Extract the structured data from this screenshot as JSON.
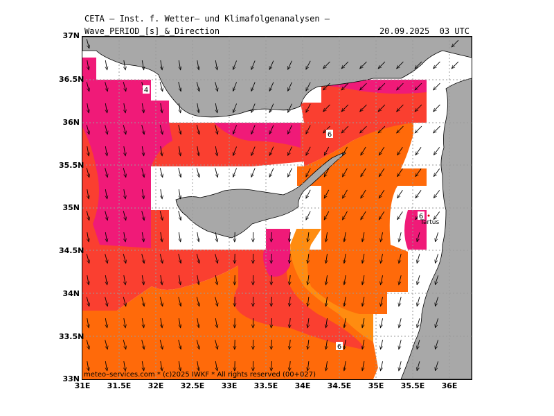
{
  "header": {
    "agency": "CETA – Inst. f. Wetter– und Klimafolgenanalysen –",
    "parameter": "Wave_PERIOD_[s]_&_Direction",
    "datetime": "20.09.2025  03 UTC"
  },
  "axes": {
    "lat_labels": [
      "37N",
      "36.5N",
      "36N",
      "35.5N",
      "35N",
      "34.5N",
      "34N",
      "33.5N",
      "33N"
    ],
    "lon_labels": [
      "31E",
      "31.5E",
      "32E",
      "32.5E",
      "33E",
      "33.5E",
      "34E",
      "34.5E",
      "35E",
      "35.5E",
      "36E"
    ]
  },
  "contour_labels": [
    "4",
    "6",
    "6",
    "6"
  ],
  "place_label": "Tartus",
  "footer": "meteo–services.com * (c)2025 IWKF * All rights reserved (00+027)",
  "colors": {
    "land": "#a8a8a8",
    "period_magenta": "#f01a78",
    "period_red": "#fa3f30",
    "period_orange": "#ff6a0a",
    "period_light_orange": "#ff8c10",
    "sea_nodata": "#ffffff"
  }
}
